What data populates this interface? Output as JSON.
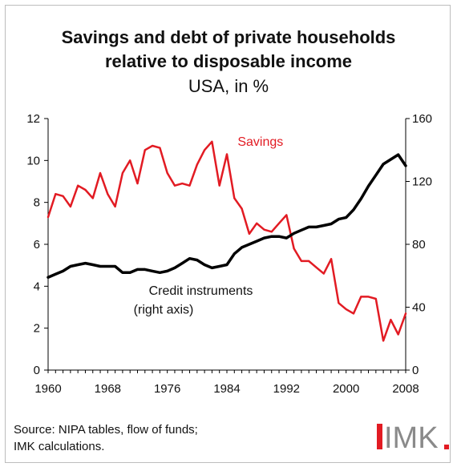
{
  "chart_data": {
    "type": "line",
    "title": "Savings and debt of private households relative to disposable income",
    "title_line1": "Savings and debt of private households",
    "title_line2": "relative to disposable income",
    "subtitle": "USA, in %",
    "x_ticks": [
      "1960",
      "1968",
      "1976",
      "1984",
      "1992",
      "2000",
      "2008"
    ],
    "y_left_ticks": [
      "0",
      "2",
      "4",
      "6",
      "8",
      "10",
      "12"
    ],
    "y_right_ticks": [
      "0",
      "40",
      "80",
      "120",
      "160"
    ],
    "xlim": [
      1960,
      2008
    ],
    "ylim_left": [
      0,
      12
    ],
    "ylim_right": [
      0,
      160
    ],
    "grid": false,
    "series": [
      {
        "name": "Savings",
        "axis": "left",
        "color": "#e21b23",
        "x": [
          1960,
          1961,
          1962,
          1963,
          1964,
          1965,
          1966,
          1967,
          1968,
          1969,
          1970,
          1971,
          1972,
          1973,
          1974,
          1975,
          1976,
          1977,
          1978,
          1979,
          1980,
          1981,
          1982,
          1983,
          1984,
          1985,
          1986,
          1987,
          1988,
          1989,
          1990,
          1991,
          1992,
          1993,
          1994,
          1995,
          1996,
          1997,
          1998,
          1999,
          2000,
          2001,
          2002,
          2003,
          2004,
          2005,
          2006,
          2007,
          2008
        ],
        "values": [
          7.3,
          8.4,
          8.3,
          7.8,
          8.8,
          8.6,
          8.2,
          9.4,
          8.4,
          7.8,
          9.4,
          10.0,
          8.9,
          10.5,
          10.7,
          10.6,
          9.4,
          8.8,
          8.9,
          8.8,
          9.8,
          10.5,
          10.9,
          8.8,
          10.3,
          8.2,
          7.7,
          6.5,
          7.0,
          6.7,
          6.6,
          7.0,
          7.4,
          5.8,
          5.2,
          5.2,
          4.9,
          4.6,
          5.3,
          3.2,
          2.9,
          2.7,
          3.5,
          3.5,
          3.4,
          1.4,
          2.4,
          1.7,
          2.7
        ]
      },
      {
        "name": "Credit instruments (right axis)",
        "label_line1": "Credit instruments",
        "label_line2": "(right axis)",
        "axis": "right",
        "color": "#000000",
        "x": [
          1960,
          1961,
          1962,
          1963,
          1964,
          1965,
          1966,
          1967,
          1968,
          1969,
          1970,
          1971,
          1972,
          1973,
          1974,
          1975,
          1976,
          1977,
          1978,
          1979,
          1980,
          1981,
          1982,
          1983,
          1984,
          1985,
          1986,
          1987,
          1988,
          1989,
          1990,
          1991,
          1992,
          1993,
          1994,
          1995,
          1996,
          1997,
          1998,
          1999,
          2000,
          2001,
          2002,
          2003,
          2004,
          2005,
          2006,
          2007,
          2008
        ],
        "values": [
          59,
          61,
          63,
          66,
          67,
          68,
          67,
          66,
          66,
          66,
          62,
          62,
          64,
          64,
          63,
          62,
          63,
          65,
          68,
          71,
          70,
          67,
          65,
          66,
          67,
          74,
          78,
          80,
          82,
          84,
          85,
          85,
          84,
          87,
          89,
          91,
          91,
          92,
          93,
          96,
          97,
          102,
          109,
          117,
          124,
          131,
          134,
          137,
          130
        ]
      }
    ],
    "source_line1": "Source: NIPA tables, flow of funds;",
    "source_line2": "IMK calculations.",
    "logo_text": "IMK",
    "logo_color": "#e21b23"
  }
}
